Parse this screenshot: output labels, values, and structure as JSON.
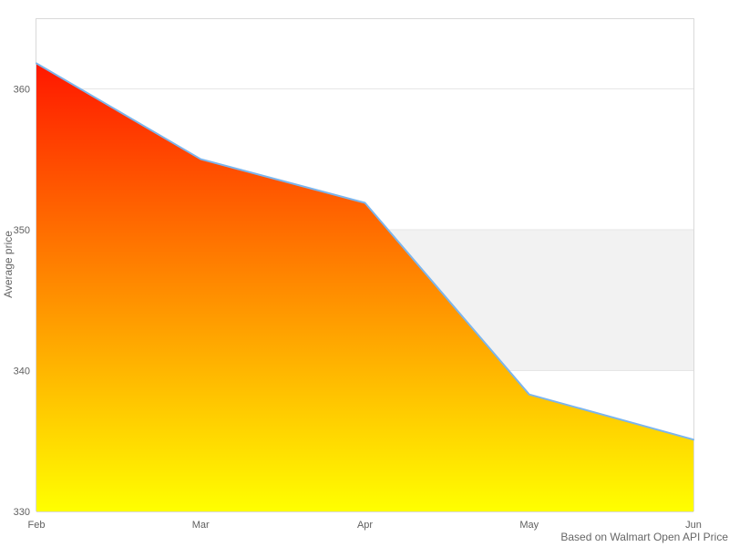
{
  "chart_data": {
    "type": "area",
    "title": "",
    "xlabel": "",
    "ylabel": "Average price",
    "caption": "Based on Walmart Open API Price",
    "categories": [
      "Feb",
      "Mar",
      "Apr",
      "May",
      "Jun"
    ],
    "series": [
      {
        "name": "Average price",
        "values": [
          361.8,
          355.0,
          351.9,
          338.3,
          335.1
        ]
      }
    ],
    "ylim": [
      330,
      365
    ],
    "yticks": [
      330,
      340,
      350,
      360
    ],
    "grid": true,
    "legend_position": "none",
    "plot_band": {
      "from": 340,
      "to": 350,
      "color": "#f2f2f2"
    },
    "colors": {
      "line": "#7cb5ec",
      "area_gradient_top": "#ff0000",
      "area_gradient_bottom": "#ffff00",
      "grid_line": "#e6e6e6",
      "plot_border": "#d9d9d9",
      "tick_label": "#606060",
      "axis_title": "#666666",
      "background": "#ffffff"
    }
  }
}
